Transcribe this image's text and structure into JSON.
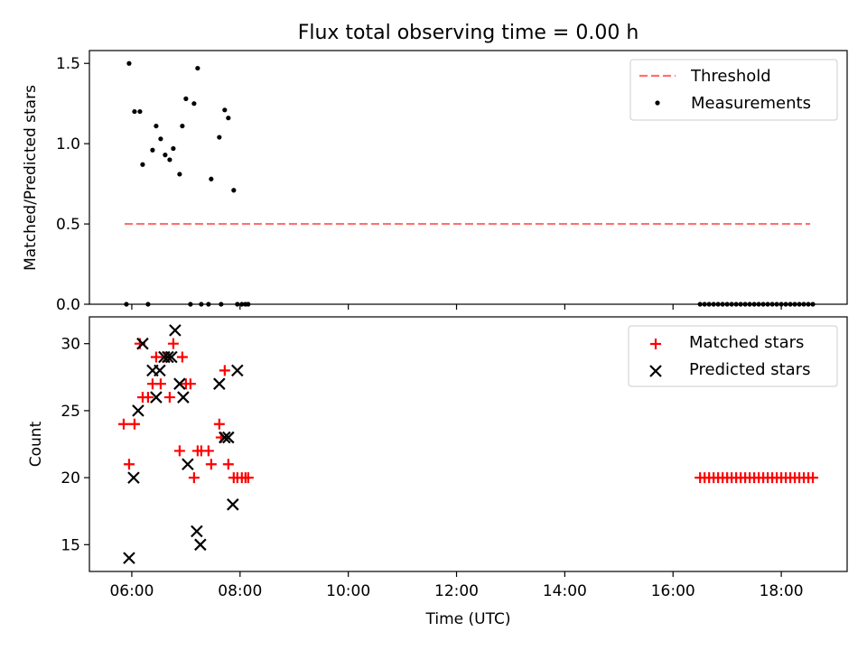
{
  "title": "Flux total observing time = 0.00 h",
  "chart_data": [
    {
      "type": "scatter",
      "panel": "top",
      "xlabel": "",
      "ylabel": "Matched/Predicted stars",
      "ylim": [
        0.0,
        1.58
      ],
      "yticks": [
        0.0,
        0.5,
        1.0,
        1.5
      ],
      "ytick_labels": [
        "0.0",
        "0.5",
        "1.0",
        "1.5"
      ],
      "legend_position": "top-right",
      "threshold": {
        "name": "Threshold",
        "value": 0.5,
        "x_range": [
          "05:52",
          "18:32"
        ],
        "color": "#ff7070",
        "style": "dashed"
      },
      "series": [
        {
          "name": "Measurements",
          "color": "#000000",
          "marker": "dot",
          "x": [
            "05:54",
            "05:57",
            "06:03",
            "06:09",
            "06:12",
            "06:18",
            "06:23",
            "06:27",
            "06:32",
            "06:37",
            "06:42",
            "06:46",
            "06:53",
            "06:56",
            "07:00",
            "07:05",
            "07:09",
            "07:13",
            "07:17",
            "07:25",
            "07:28",
            "07:37",
            "07:39",
            "07:43",
            "07:47",
            "07:53",
            "07:57",
            "08:02",
            "08:06",
            "08:09",
            "16:30",
            "16:35",
            "16:40",
            "16:45",
            "16:50",
            "16:55",
            "17:00",
            "17:05",
            "17:10",
            "17:15",
            "17:20",
            "17:25",
            "17:30",
            "17:35",
            "17:40",
            "17:45",
            "17:50",
            "17:55",
            "18:00",
            "18:05",
            "18:10",
            "18:15",
            "18:20",
            "18:25",
            "18:30",
            "18:35"
          ],
          "y": [
            0.0,
            1.5,
            1.2,
            1.2,
            0.87,
            0.0,
            0.96,
            1.11,
            1.03,
            0.93,
            0.9,
            0.97,
            0.81,
            1.11,
            1.28,
            0.0,
            1.25,
            1.47,
            0.0,
            0.0,
            0.78,
            1.04,
            0.0,
            1.21,
            1.16,
            0.71,
            0.0,
            0.0,
            0.0,
            0.0,
            0.0,
            0.0,
            0.0,
            0.0,
            0.0,
            0.0,
            0.0,
            0.0,
            0.0,
            0.0,
            0.0,
            0.0,
            0.0,
            0.0,
            0.0,
            0.0,
            0.0,
            0.0,
            0.0,
            0.0,
            0.0,
            0.0,
            0.0,
            0.0,
            0.0,
            0.0
          ]
        }
      ]
    },
    {
      "type": "scatter",
      "panel": "bottom",
      "xlabel": "Time (UTC)",
      "ylabel": "Count",
      "ylim": [
        13.0,
        32.0
      ],
      "yticks": [
        15,
        20,
        25,
        30
      ],
      "ytick_labels": [
        "15",
        "20",
        "25",
        "30"
      ],
      "xlim": [
        "05:13",
        "19:13"
      ],
      "xticks": [
        "06:00",
        "08:00",
        "10:00",
        "12:00",
        "14:00",
        "16:00",
        "18:00"
      ],
      "xtick_labels": [
        "06:00",
        "08:00",
        "10:00",
        "12:00",
        "14:00",
        "16:00",
        "18:00"
      ],
      "legend_position": "top-right",
      "series": [
        {
          "name": "Matched stars",
          "color": "#ff0000",
          "marker": "plus",
          "x": [
            "05:51",
            "05:57",
            "06:03",
            "06:09",
            "06:12",
            "06:18",
            "06:23",
            "06:27",
            "06:32",
            "06:37",
            "06:42",
            "06:46",
            "06:53",
            "06:56",
            "07:00",
            "07:05",
            "07:09",
            "07:13",
            "07:17",
            "07:25",
            "07:28",
            "07:37",
            "07:39",
            "07:43",
            "07:47",
            "07:53",
            "07:57",
            "08:02",
            "08:06",
            "08:09",
            "16:30",
            "16:35",
            "16:40",
            "16:45",
            "16:50",
            "16:55",
            "17:00",
            "17:05",
            "17:10",
            "17:15",
            "17:20",
            "17:25",
            "17:30",
            "17:35",
            "17:40",
            "17:45",
            "17:50",
            "17:55",
            "18:00",
            "18:05",
            "18:10",
            "18:15",
            "18:20",
            "18:25",
            "18:30",
            "18:35"
          ],
          "y": [
            24,
            21,
            24,
            30,
            26,
            26,
            27,
            29,
            27,
            29,
            26,
            30,
            22,
            29,
            27,
            27,
            20,
            22,
            22,
            22,
            21,
            24,
            23,
            28,
            21,
            20,
            20,
            20,
            20,
            20,
            20,
            20,
            20,
            20,
            20,
            20,
            20,
            20,
            20,
            20,
            20,
            20,
            20,
            20,
            20,
            20,
            20,
            20,
            20,
            20,
            20,
            20,
            20,
            20,
            20,
            20
          ]
        },
        {
          "name": "Predicted stars",
          "color": "#000000",
          "marker": "x",
          "x": [
            "05:57",
            "06:02",
            "06:07",
            "06:12",
            "06:23",
            "06:27",
            "06:31",
            "06:36",
            "06:40",
            "06:44",
            "06:48",
            "06:53",
            "06:57",
            "07:02",
            "07:12",
            "07:16",
            "07:37",
            "07:43",
            "07:47",
            "07:52",
            "07:57"
          ],
          "y": [
            14,
            20,
            25,
            30,
            28,
            26,
            28,
            29,
            29,
            29,
            31,
            27,
            26,
            21,
            16,
            15,
            27,
            23,
            23,
            18,
            28
          ]
        }
      ]
    }
  ]
}
